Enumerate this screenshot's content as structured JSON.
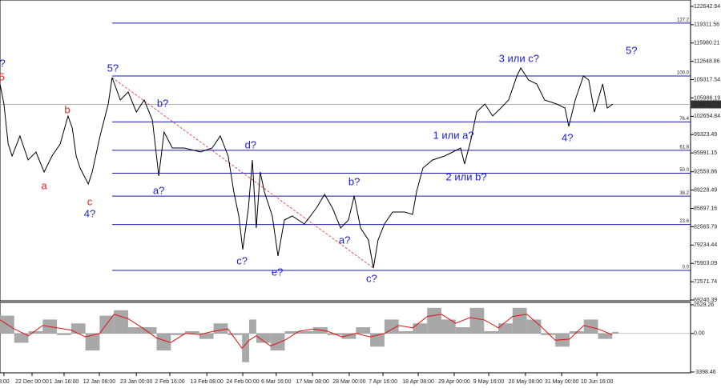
{
  "chart_data": [
    {
      "type": "line",
      "xlim": [
        0,
        194
      ],
      "ylim": [
        69240.39,
        123800
      ],
      "yticks": [
        122642.94,
        119311.56,
        115980.21,
        112648.86,
        109317.54,
        105986.19,
        102654.84,
        99323.49,
        95991.15,
        92559.86,
        89228.49,
        85897.16,
        82565.79,
        79234.44,
        75903.09,
        72571.74,
        69240.39
      ],
      "xticks": [
        {
          "value": 1.1,
          "label": "8:00"
        },
        {
          "value": 9,
          "label": "22 Dec 00:00"
        },
        {
          "value": 18,
          "label": "1 Jan 16:00"
        },
        {
          "value": 27.9,
          "label": "12 Jan 08:00"
        },
        {
          "value": 38.3,
          "label": "23 Jan 00:00"
        },
        {
          "value": 47.7,
          "label": "2 Feb 16:00"
        },
        {
          "value": 58.1,
          "label": "13 Feb 08:00"
        },
        {
          "value": 68.2,
          "label": "24 Feb 00:00"
        },
        {
          "value": 77.6,
          "label": "6 Mar 16:00"
        },
        {
          "value": 87.8,
          "label": "17 Mar 08:00"
        },
        {
          "value": 98.1,
          "label": "28 Mar 00:00"
        },
        {
          "value": 107.6,
          "label": "7 Apr 16:00"
        },
        {
          "value": 117.5,
          "label": "18 Apr 08:00"
        },
        {
          "value": 127.6,
          "label": "29 Apr 00:00"
        },
        {
          "value": 137.3,
          "label": "9 May 16:00"
        },
        {
          "value": 147.6,
          "label": "20 May 08:00"
        },
        {
          "value": 157.8,
          "label": "31 May 00:00"
        },
        {
          "value": 167.7,
          "label": "10 Jun 16:00"
        }
      ],
      "color": "#000000",
      "x": [
        0,
        1.1,
        2.3,
        3.4,
        5.6,
        7.9,
        10.1,
        12.4,
        14.6,
        16.9,
        19.1,
        20.3,
        21.4,
        22.5,
        24.8,
        25.9,
        28.1,
        30.4,
        31.5,
        33.8,
        36,
        38.3,
        40.5,
        42.8,
        44.6,
        46.1,
        48.4,
        51.8,
        56.3,
        59.6,
        61.9,
        64.1,
        65.7,
        67.1,
        68.2,
        69.8,
        70.9,
        72,
        73.1,
        74.3,
        76.5,
        78.1,
        79.9,
        82.1,
        85.5,
        88.9,
        91.2,
        93.4,
        95.7,
        97.9,
        99.5,
        101.3,
        103.5,
        104.9,
        106.2,
        108,
        110.3,
        113.7,
        115.9,
        117,
        118.8,
        121.5,
        124.9,
        127.2,
        129.4,
        130.5,
        132.3,
        133.9,
        136.2,
        138.4,
        140.7,
        142.9,
        145.2,
        146.3,
        148.5,
        150.8,
        153,
        156.4,
        158.7,
        159.8,
        161.6,
        163.9,
        165.4,
        167,
        169.3,
        170.6,
        172.2
      ],
      "values": [
        108520,
        104890,
        97610,
        95430,
        99070,
        94700,
        96160,
        92520,
        95430,
        97610,
        102700,
        100520,
        95430,
        93250,
        90340,
        92520,
        99070,
        104890,
        109690,
        105610,
        107070,
        103430,
        105610,
        101980,
        91790,
        99790,
        96880,
        96880,
        96160,
        96880,
        99070,
        95430,
        88880,
        84520,
        78410,
        85970,
        94700,
        82340,
        92520,
        88880,
        84520,
        77240,
        83790,
        84520,
        83060,
        85970,
        88450,
        85970,
        82340,
        83790,
        88160,
        82340,
        80150,
        75060,
        80150,
        83060,
        85250,
        85250,
        84810,
        88880,
        93250,
        94700,
        95430,
        96160,
        96880,
        93970,
        98340,
        103430,
        104890,
        102700,
        104160,
        105610,
        109980,
        111430,
        109250,
        108520,
        105610,
        104890,
        104160,
        100810,
        105610,
        109980,
        109250,
        103430,
        108520,
        104160,
        104890
      ],
      "current_price": 104818.73,
      "levels": [
        {
          "label": "127.2",
          "value": 119595
        },
        {
          "label": "100.0",
          "value": 109978
        },
        {
          "label": "76.4",
          "value": 101634
        },
        {
          "label": "61.8",
          "value": 96472
        },
        {
          "label": "50.0",
          "value": 92300
        },
        {
          "label": "38.2",
          "value": 88129
        },
        {
          "label": "23.6",
          "value": 82967
        },
        {
          "label": "0.0",
          "value": 74623
        }
      ],
      "level_color": "#1a1aa8",
      "trendline": {
        "x": [
          31.5,
          104.9
        ],
        "y": [
          109690,
          75060
        ],
        "color": "#e03030"
      },
      "annotations": [
        {
          "text": "?",
          "x": 0.7,
          "y": 112160,
          "color": "#1c1cd0"
        },
        {
          "text": "5",
          "x": 0.5,
          "y": 109690,
          "color": "#e02020"
        },
        {
          "text": "b",
          "x": 18.9,
          "y": 103720,
          "color": "#e02020"
        },
        {
          "text": "a",
          "x": 12.4,
          "y": 89900,
          "color": "#e02020"
        },
        {
          "text": "c",
          "x": 25.2,
          "y": 86990,
          "color": "#e02020"
        },
        {
          "text": "4?",
          "x": 25.2,
          "y": 84810,
          "color": "#1c1cd0"
        },
        {
          "text": "5?",
          "x": 31.7,
          "y": 111290,
          "color": "#1c1cd0"
        },
        {
          "text": "b?",
          "x": 45.7,
          "y": 104890,
          "color": "#1c1cd0"
        },
        {
          "text": "a?",
          "x": 44.6,
          "y": 89030,
          "color": "#1c1cd0"
        },
        {
          "text": "d?",
          "x": 70.4,
          "y": 97320,
          "color": "#1c1cd0"
        },
        {
          "text": "c?",
          "x": 68,
          "y": 76230,
          "color": "#1c1cd0"
        },
        {
          "text": "e?",
          "x": 77.9,
          "y": 74190,
          "color": "#1c1cd0"
        },
        {
          "text": "b?",
          "x": 99.5,
          "y": 90630,
          "color": "#1c1cd0"
        },
        {
          "text": "a?",
          "x": 96.8,
          "y": 80010,
          "color": "#1c1cd0"
        },
        {
          "text": "c?",
          "x": 104.4,
          "y": 73020,
          "color": "#1c1cd0"
        },
        {
          "text": "1 или a?",
          "x": 127.4,
          "y": 99070,
          "color": "#1c1cd0"
        },
        {
          "text": "2 или b?",
          "x": 131,
          "y": 91500,
          "color": "#1c1cd0"
        },
        {
          "text": "3 или c?",
          "x": 145.8,
          "y": 113030,
          "color": "#1c1cd0"
        },
        {
          "text": "4?",
          "x": 159.4,
          "y": 98630,
          "color": "#1c1cd0"
        },
        {
          "text": "5?",
          "x": 177.4,
          "y": 114490,
          "color": "#1c1cd0"
        }
      ]
    },
    {
      "type": "oscillator",
      "xlim": [
        0,
        194
      ],
      "ylim": [
        -3398.46,
        2529.26
      ],
      "yticks": [
        2529.26,
        {
          "value": 0,
          "label": "0.00"
        },
        -3398.46
      ],
      "color": "#a8a8a8",
      "x": [
        0,
        4,
        8,
        12,
        16,
        20,
        24,
        28,
        32,
        36,
        40,
        44,
        48,
        52,
        56,
        60,
        64,
        68,
        70,
        72,
        76,
        80,
        84,
        88,
        92,
        96,
        100,
        104,
        108,
        112,
        116,
        120,
        124,
        128,
        132,
        136,
        140,
        144,
        148,
        152,
        156,
        160,
        164,
        168,
        172
      ],
      "values": [
        1570,
        -820,
        200,
        1230,
        -140,
        890,
        -1500,
        1570,
        2050,
        550,
        550,
        -1500,
        -140,
        200,
        -480,
        890,
        -140,
        -2530,
        1230,
        -820,
        -1500,
        200,
        200,
        550,
        -140,
        -480,
        550,
        -1160,
        1230,
        200,
        890,
        2260,
        1230,
        550,
        2260,
        200,
        890,
        2260,
        1230,
        -140,
        -1160,
        200,
        1230,
        -480,
        140
      ],
      "signal": {
        "color": "#e01010",
        "values": [
          1200,
          400,
          -200,
          700,
          500,
          300,
          -300,
          0,
          1700,
          1300,
          500,
          -400,
          -800,
          0,
          -100,
          200,
          400,
          -1300,
          -600,
          -200,
          -1100,
          -600,
          200,
          400,
          200,
          -300,
          0,
          -300,
          0,
          700,
          500,
          1500,
          1700,
          900,
          1400,
          1200,
          500,
          1500,
          1700,
          600,
          -600,
          -500,
          700,
          400,
          -100
        ]
      }
    }
  ]
}
